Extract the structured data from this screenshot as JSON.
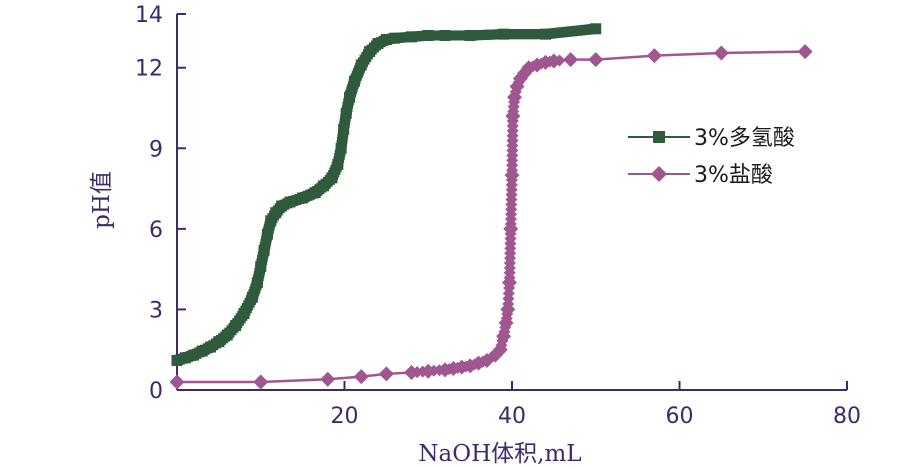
{
  "chart_data": {
    "type": "line",
    "xlabel": "NaOH体积,mL",
    "ylabel": "pH值",
    "xlim": [
      0,
      80
    ],
    "ylim": [
      0,
      14
    ],
    "xticks": [
      20,
      40,
      60,
      80
    ],
    "yticks": [
      0,
      3,
      6,
      9,
      12,
      14
    ],
    "grid": false,
    "legend_position": "right",
    "series": [
      {
        "name": "3%多氢酸",
        "color": "#2f5a3b",
        "marker": "square",
        "points": [
          [
            0,
            1.1
          ],
          [
            1,
            1.2
          ],
          [
            2,
            1.3
          ],
          [
            3,
            1.45
          ],
          [
            4,
            1.6
          ],
          [
            5,
            1.8
          ],
          [
            6,
            2.05
          ],
          [
            7,
            2.4
          ],
          [
            8,
            2.85
          ],
          [
            9,
            3.45
          ],
          [
            9.6,
            4.0
          ],
          [
            10,
            4.6
          ],
          [
            10.4,
            5.2
          ],
          [
            10.8,
            5.8
          ],
          [
            11.2,
            6.3
          ],
          [
            11.8,
            6.6
          ],
          [
            12.5,
            6.85
          ],
          [
            13.5,
            7.0
          ],
          [
            15,
            7.15
          ],
          [
            16.5,
            7.35
          ],
          [
            17.5,
            7.6
          ],
          [
            18.5,
            7.9
          ],
          [
            19.2,
            8.4
          ],
          [
            19.6,
            9.0
          ],
          [
            19.9,
            9.7
          ],
          [
            20.2,
            10.3
          ],
          [
            20.6,
            10.9
          ],
          [
            21.2,
            11.5
          ],
          [
            22,
            12.1
          ],
          [
            23,
            12.6
          ],
          [
            24,
            12.9
          ],
          [
            25,
            13.05
          ],
          [
            26,
            13.1
          ],
          [
            28,
            13.15
          ],
          [
            30,
            13.2
          ],
          [
            32,
            13.2
          ],
          [
            35,
            13.2
          ],
          [
            39,
            13.25
          ],
          [
            44,
            13.25
          ],
          [
            50,
            13.45
          ]
        ]
      },
      {
        "name": "3%盐酸",
        "color": "#a0578f",
        "marker": "diamond",
        "points": [
          [
            0,
            0.3
          ],
          [
            10,
            0.3
          ],
          [
            18,
            0.4
          ],
          [
            22,
            0.5
          ],
          [
            25,
            0.6
          ],
          [
            28,
            0.65
          ],
          [
            30,
            0.7
          ],
          [
            32,
            0.75
          ],
          [
            33,
            0.8
          ],
          [
            34,
            0.85
          ],
          [
            35,
            0.9
          ],
          [
            36,
            1.0
          ],
          [
            37,
            1.1
          ],
          [
            38,
            1.3
          ],
          [
            38.6,
            1.5
          ],
          [
            39,
            2.0
          ],
          [
            39.3,
            2.5
          ],
          [
            39.5,
            3.0
          ],
          [
            39.7,
            4.0
          ],
          [
            39.85,
            6.0
          ],
          [
            40,
            8.0
          ],
          [
            40.1,
            10.2
          ],
          [
            40.3,
            10.9
          ],
          [
            40.6,
            11.3
          ],
          [
            41,
            11.6
          ],
          [
            41.5,
            11.8
          ],
          [
            42,
            12.0
          ],
          [
            43,
            12.1
          ],
          [
            44,
            12.2
          ],
          [
            45,
            12.25
          ],
          [
            47,
            12.3
          ],
          [
            50,
            12.3
          ],
          [
            57,
            12.45
          ],
          [
            65,
            12.55
          ],
          [
            75,
            12.6
          ]
        ]
      }
    ]
  }
}
